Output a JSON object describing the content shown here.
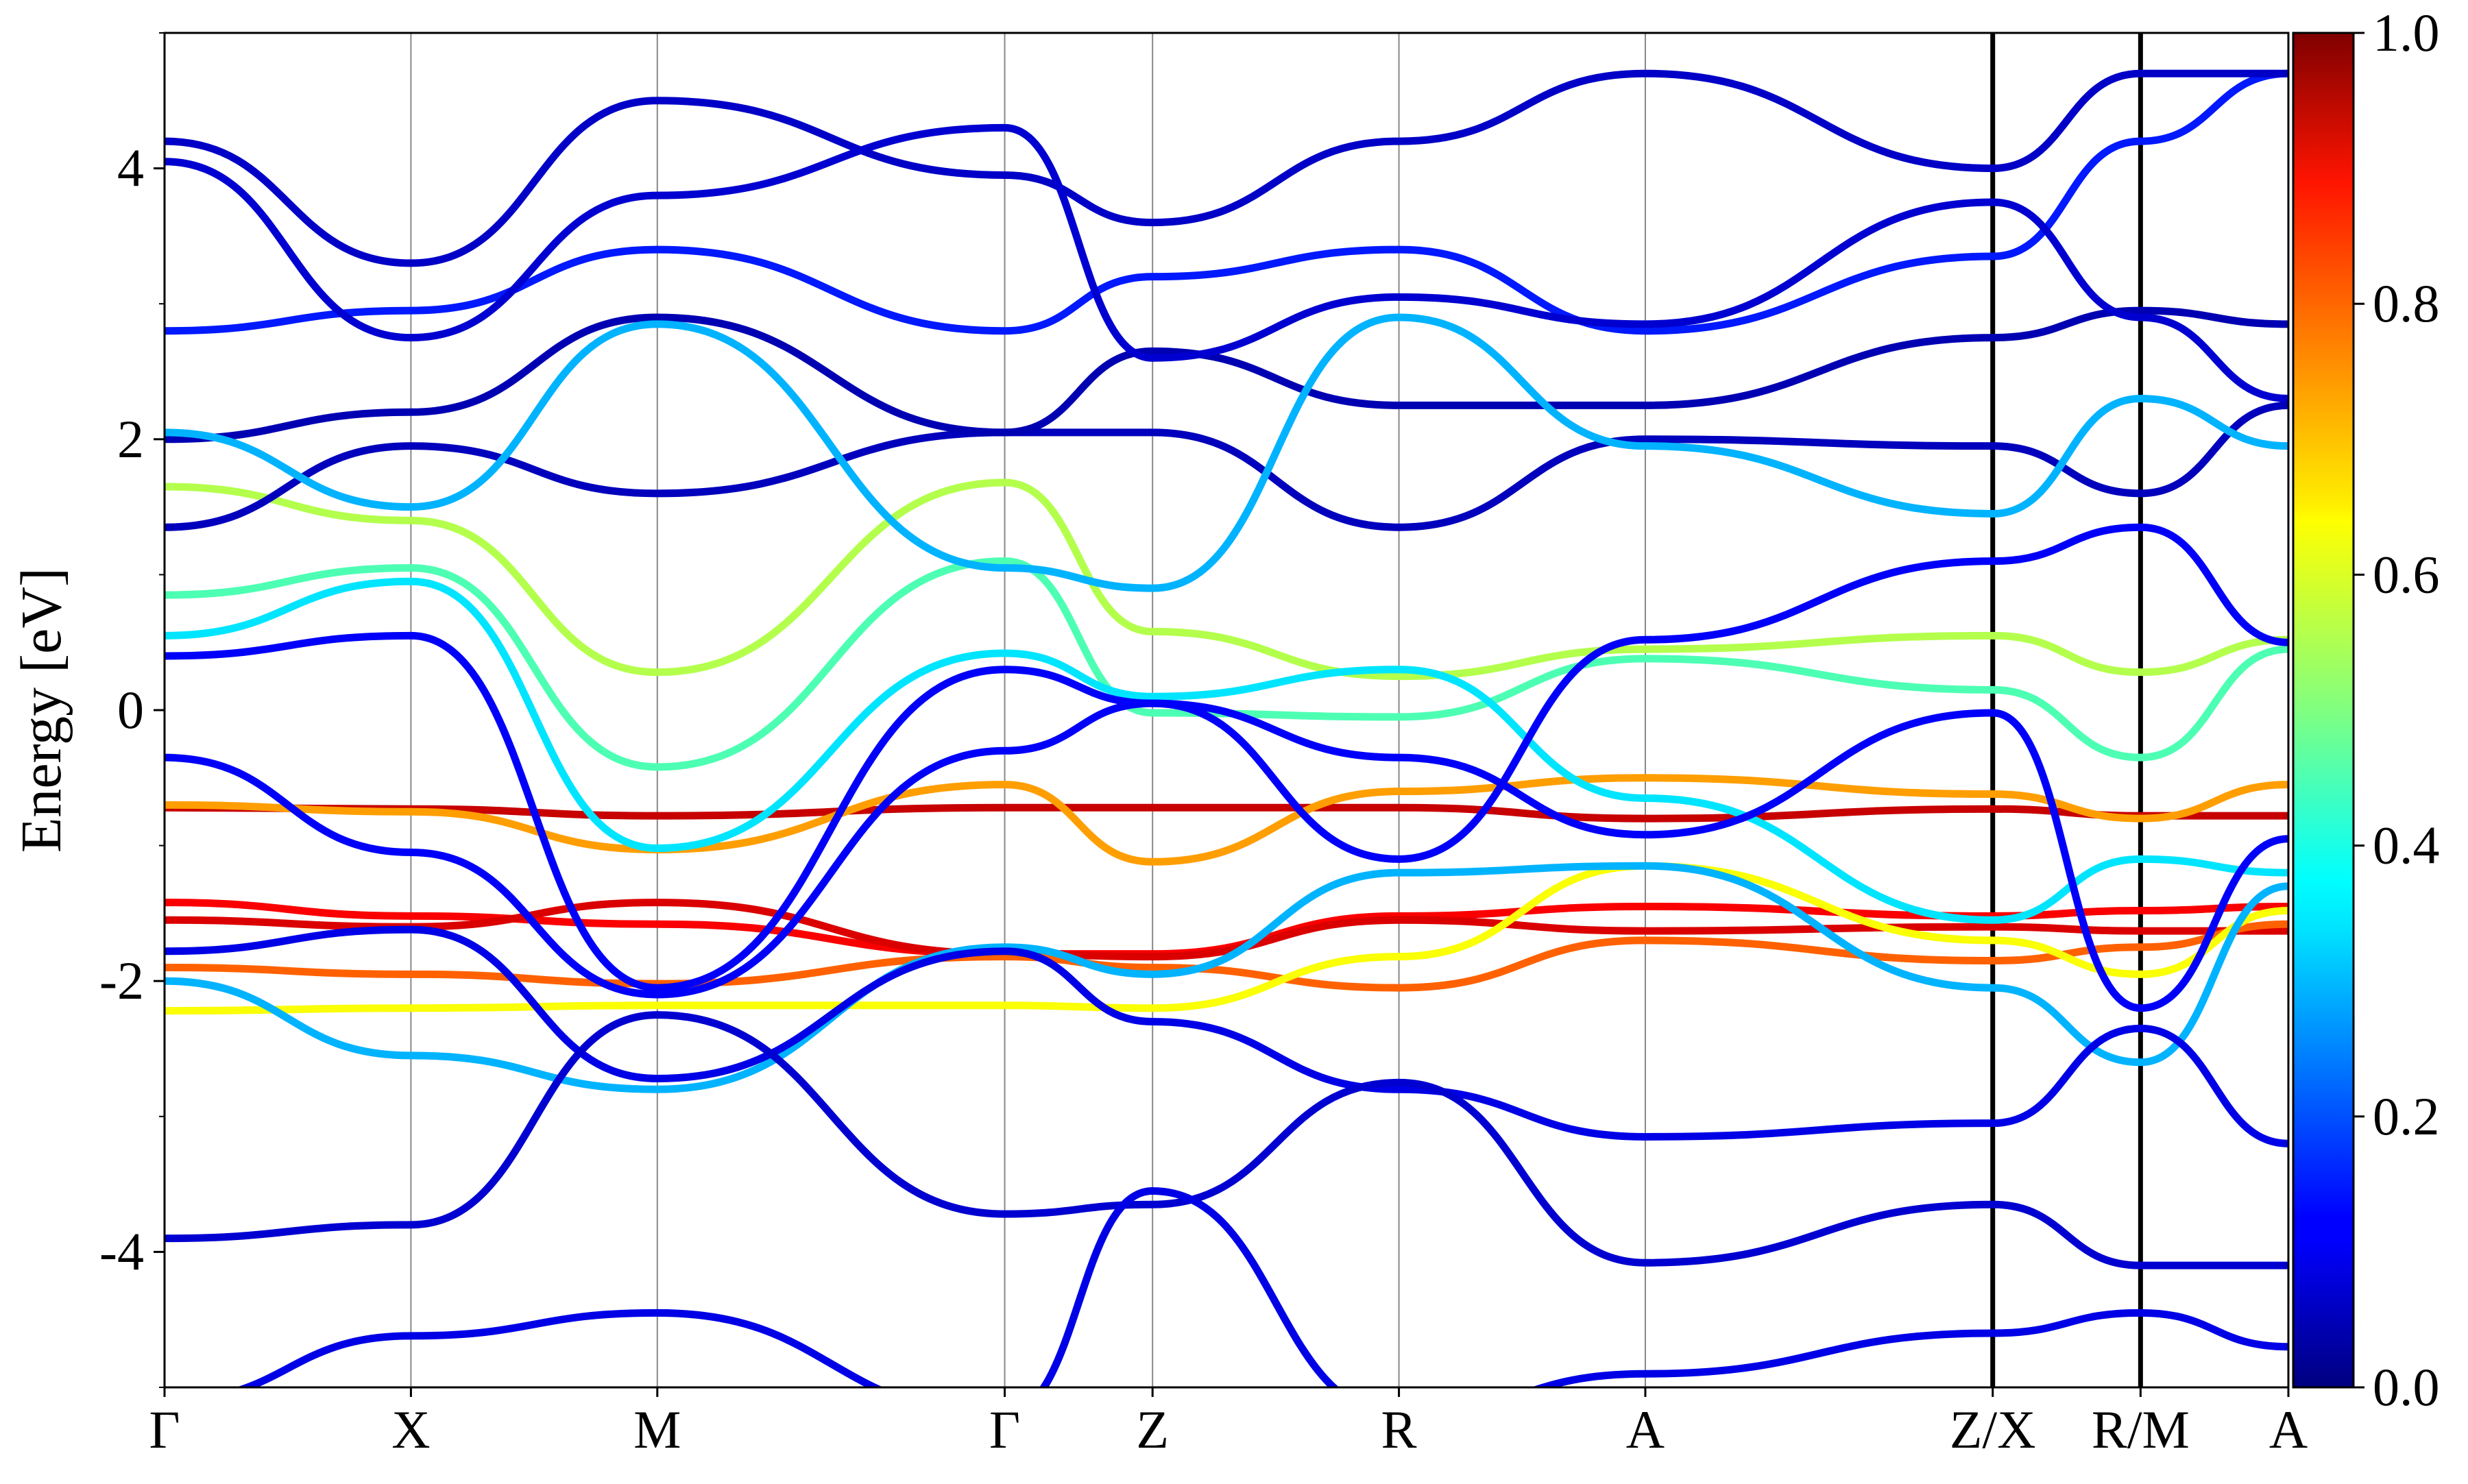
{
  "chart_data": {
    "type": "line",
    "ylabel": "Energy [eV]",
    "ylim": [
      -5,
      5
    ],
    "yticks": [
      {
        "value": 4,
        "label": "4"
      },
      {
        "value": 2,
        "label": "2"
      },
      {
        "value": 0,
        "label": "0"
      },
      {
        "value": -2,
        "label": "-2"
      },
      {
        "value": -4,
        "label": "-4"
      }
    ],
    "k_path": [
      {
        "label": "Γ",
        "k": 0.0
      },
      {
        "label": "X",
        "k": 1.0
      },
      {
        "label": "M",
        "k": 2.0
      },
      {
        "label": "Γ",
        "k": 3.41
      },
      {
        "label": "Z",
        "k": 4.01
      },
      {
        "label": "R",
        "k": 5.01
      },
      {
        "label": "A",
        "k": 6.01
      },
      {
        "label": "Z/X",
        "k": 7.42
      },
      {
        "label": "R/M",
        "k": 8.02
      },
      {
        "label": "A",
        "k": 8.62
      }
    ],
    "colorbar": {
      "colormap": "jet",
      "range": [
        0.0,
        1.0
      ],
      "ticks": [
        "0.0",
        "0.2",
        "0.4",
        "0.6",
        "0.8",
        "1.0"
      ]
    },
    "bands": [
      {
        "weight": 0.93,
        "x": [
          0,
          1,
          2,
          3.41,
          4.01,
          5.01,
          6.01,
          7.42,
          8.02,
          8.62
        ],
        "y": [
          -0.72,
          -0.73,
          -0.78,
          -0.72,
          -0.72,
          -0.72,
          -0.8,
          -0.73,
          -0.78,
          -0.78
        ]
      },
      {
        "weight": 0.88,
        "x": [
          0,
          1,
          2,
          3.41,
          4.01,
          5.01,
          6.01,
          7.42,
          8.02,
          8.62
        ],
        "y": [
          -1.42,
          -1.52,
          -1.58,
          -1.8,
          -1.8,
          -1.52,
          -1.45,
          -1.52,
          -1.48,
          -1.45
        ]
      },
      {
        "weight": 0.91,
        "x": [
          0,
          1,
          2,
          3.41,
          4.01,
          5.01,
          6.01,
          7.42,
          8.02,
          8.62
        ],
        "y": [
          -1.55,
          -1.6,
          -1.42,
          -1.8,
          -1.82,
          -1.55,
          -1.63,
          -1.6,
          -1.63,
          -1.63
        ]
      },
      {
        "weight": 0.78,
        "x": [
          0,
          1,
          2,
          3.41,
          4.01,
          5.01,
          6.01,
          7.42,
          8.02,
          8.62
        ],
        "y": [
          -1.9,
          -1.95,
          -2.02,
          -1.82,
          -1.9,
          -2.05,
          -1.7,
          -1.85,
          -1.75,
          -1.58
        ]
      },
      {
        "weight": 0.72,
        "x": [
          0,
          1,
          2,
          3.41,
          4.01,
          5.01,
          6.01,
          7.42,
          8.02,
          8.62
        ],
        "y": [
          -0.7,
          -0.75,
          -1.03,
          -0.55,
          -1.12,
          -0.6,
          -0.5,
          -0.62,
          -0.8,
          -0.55
        ]
      },
      {
        "weight": 0.62,
        "x": [
          0,
          1,
          2,
          3.41,
          4.01,
          5.01,
          6.01,
          7.42,
          8.02,
          8.62
        ],
        "y": [
          -2.22,
          -2.2,
          -2.18,
          -2.18,
          -2.2,
          -1.82,
          -1.15,
          -1.7,
          -1.95,
          -1.48
        ]
      },
      {
        "weight": 0.55,
        "x": [
          0,
          1,
          2,
          3.41,
          4.01,
          5.01,
          6.01,
          7.42,
          8.02,
          8.62
        ],
        "y": [
          1.65,
          1.4,
          0.28,
          1.68,
          0.58,
          0.25,
          0.45,
          0.55,
          0.28,
          0.52
        ]
      },
      {
        "weight": 0.45,
        "x": [
          0,
          1,
          2,
          3.41,
          4.01,
          5.01,
          6.01,
          7.42,
          8.02,
          8.62
        ],
        "y": [
          0.85,
          1.05,
          -0.42,
          1.1,
          -0.02,
          -0.05,
          0.38,
          0.15,
          -0.35,
          0.45
        ]
      },
      {
        "weight": 0.35,
        "x": [
          0,
          1,
          2,
          3.41,
          4.01,
          5.01,
          6.01,
          7.42,
          8.02,
          8.62
        ],
        "y": [
          0.55,
          0.95,
          -1.02,
          0.42,
          0.1,
          0.3,
          -0.65,
          -1.55,
          -1.1,
          -1.2
        ]
      },
      {
        "weight": 0.3,
        "x": [
          0,
          1,
          2,
          3.41,
          4.01,
          5.01,
          6.01,
          7.42,
          8.02,
          8.62
        ],
        "y": [
          -2.0,
          -2.55,
          -2.8,
          -1.75,
          -1.95,
          -1.2,
          -1.15,
          -2.05,
          -2.6,
          -1.3
        ]
      },
      {
        "weight": 0.12,
        "x": [
          0,
          1,
          2,
          3.41,
          4.01,
          5.01,
          6.01,
          7.42,
          8.02,
          8.62
        ],
        "y": [
          -0.35,
          -1.05,
          -2.1,
          -0.3,
          0.05,
          -0.35,
          -0.92,
          -0.02,
          -2.2,
          -0.95
        ]
      },
      {
        "weight": 0.1,
        "x": [
          0,
          1,
          2,
          3.41,
          4.01,
          5.01,
          6.01,
          7.42,
          8.02,
          8.62
        ],
        "y": [
          -1.78,
          -1.62,
          -2.72,
          -1.78,
          -2.3,
          -2.8,
          -3.15,
          -3.05,
          -2.35,
          -3.2
        ]
      },
      {
        "weight": 0.08,
        "x": [
          0,
          1,
          2,
          3.41,
          4.01,
          5.01,
          6.01,
          7.42,
          8.02,
          8.62
        ],
        "y": [
          -3.9,
          -3.8,
          -2.25,
          -3.72,
          -3.65,
          -2.75,
          -4.08,
          -3.65,
          -4.1,
          -4.1
        ]
      },
      {
        "weight": 0.1,
        "x": [
          0,
          1,
          2,
          3.41,
          4.01,
          5.01,
          6.01,
          7.42,
          8.02,
          8.62
        ],
        "y": [
          -5.1,
          -4.62,
          -4.45,
          -5.2,
          -3.55,
          -5.2,
          -4.9,
          -4.6,
          -4.45,
          -4.7
        ]
      },
      {
        "weight": 0.12,
        "x": [
          0,
          1,
          2,
          3.41,
          4.01,
          5.01,
          6.01,
          7.42,
          8.02,
          8.62
        ],
        "y": [
          0.4,
          0.55,
          -2.05,
          0.3,
          0.05,
          -1.1,
          0.52,
          1.1,
          1.35,
          0.5
        ]
      },
      {
        "weight": 0.06,
        "x": [
          0,
          1,
          2,
          3.41,
          4.01,
          5.01,
          6.01,
          7.42,
          8.02,
          8.62
        ],
        "y": [
          1.35,
          1.95,
          1.6,
          2.05,
          2.05,
          1.35,
          2.0,
          1.95,
          1.6,
          2.25
        ]
      },
      {
        "weight": 0.05,
        "x": [
          0,
          1,
          2,
          3.41,
          4.01,
          5.01,
          6.01,
          7.42,
          8.02,
          8.62
        ],
        "y": [
          2.0,
          2.2,
          2.9,
          2.05,
          2.65,
          2.25,
          2.25,
          2.75,
          2.95,
          2.85
        ]
      },
      {
        "weight": 0.15,
        "x": [
          0,
          1,
          2,
          3.41,
          4.01,
          5.01,
          6.01,
          7.42,
          8.02,
          8.62
        ],
        "y": [
          2.8,
          2.95,
          3.4,
          2.8,
          3.2,
          3.4,
          2.8,
          3.35,
          4.2,
          4.7
        ]
      },
      {
        "weight": 0.07,
        "x": [
          0,
          1,
          2,
          3.41,
          4.01,
          5.01,
          6.01,
          7.42,
          8.02,
          8.62
        ],
        "y": [
          4.2,
          3.3,
          4.5,
          3.95,
          3.6,
          4.2,
          4.7,
          4.0,
          4.7,
          4.7
        ]
      },
      {
        "weight": 0.3,
        "x": [
          0,
          1,
          2,
          3.41,
          4.01,
          5.01,
          6.01,
          7.42,
          8.02,
          8.62
        ],
        "y": [
          2.05,
          1.5,
          2.85,
          1.05,
          0.9,
          2.9,
          1.95,
          1.45,
          2.3,
          1.95
        ]
      },
      {
        "weight": 0.08,
        "x": [
          0,
          1,
          2,
          3.41,
          4.01,
          5.01,
          6.01,
          7.42,
          8.02,
          8.62
        ],
        "y": [
          4.05,
          2.75,
          3.8,
          4.3,
          2.6,
          3.05,
          2.85,
          3.75,
          2.9,
          2.3
        ]
      }
    ]
  }
}
